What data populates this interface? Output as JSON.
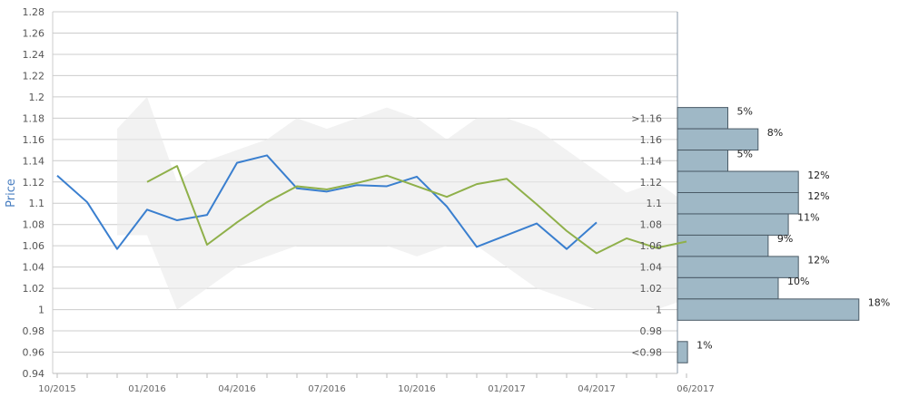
{
  "chart_data": {
    "type": "line",
    "ylabel": "Price",
    "ylim": [
      0.94,
      1.28
    ],
    "y_ticks": [
      "0.94",
      "0.96",
      "0.98",
      "1",
      "1.02",
      "1.04",
      "1.06",
      "1.08",
      "1.1",
      "1.12",
      "1.14",
      "1.16",
      "1.18",
      "1.2",
      "1.22",
      "1.24",
      "1.26",
      "1.28"
    ],
    "x_ticks": [
      "10/2015",
      "01/2016",
      "04/2016",
      "07/2016",
      "10/2016",
      "01/2017",
      "04/2017",
      "06/2017"
    ],
    "grid": true,
    "band": {
      "x": [
        2,
        3,
        4,
        5,
        6,
        7,
        8,
        9,
        10,
        11,
        12,
        13,
        14,
        15,
        16,
        17,
        18,
        19,
        20,
        21,
        22,
        23
      ],
      "upper": [
        1.17,
        1.2,
        1.12,
        1.14,
        1.15,
        1.16,
        1.18,
        1.17,
        1.18,
        1.19,
        1.18,
        1.16,
        1.18,
        1.18,
        1.17,
        1.15,
        1.13,
        1.11,
        1.12,
        1.1,
        1.11,
        1.12
      ],
      "lower": [
        1.07,
        1.07,
        1.0,
        1.02,
        1.04,
        1.05,
        1.06,
        1.06,
        1.06,
        1.06,
        1.05,
        1.06,
        1.06,
        1.04,
        1.02,
        1.01,
        1.0,
        1.0,
        1.0,
        1.01,
        1.0,
        1.01
      ]
    },
    "series": [
      {
        "color": "#3a7fcf",
        "x": [
          0,
          1,
          2,
          3,
          4,
          5,
          6,
          7,
          8,
          9,
          10,
          11,
          12,
          13,
          14,
          15,
          16,
          17,
          18
        ],
        "values": [
          1.126,
          1.101,
          1.057,
          1.094,
          1.084,
          1.089,
          1.138,
          1.145,
          1.114,
          1.111,
          1.117,
          1.116,
          1.125,
          1.097,
          1.059,
          1.07,
          1.081,
          1.057,
          1.082
        ]
      },
      {
        "color": "#8fb04a",
        "x": [
          3,
          4,
          5,
          6,
          7,
          8,
          9,
          10,
          11,
          12,
          13,
          14,
          15,
          16,
          17,
          18,
          19,
          20,
          21
        ],
        "values": [
          1.12,
          1.135,
          1.061,
          1.082,
          1.101,
          1.116,
          1.113,
          1.119,
          1.126,
          1.116,
          1.106,
          1.118,
          1.123,
          1.099,
          1.074,
          1.053,
          1.067,
          1.058,
          1.064
        ]
      }
    ],
    "histogram": {
      "labels": [
        ">1.16",
        "1.16",
        "1.14",
        "1.12",
        "1.1",
        "1.08",
        "1.06",
        "1.04",
        "1.02",
        "1",
        "0.98",
        "<0.98"
      ],
      "values": [
        5,
        8,
        5,
        12,
        12,
        11,
        9,
        12,
        10,
        18,
        null,
        1
      ],
      "value_labels": [
        "5%",
        "8%",
        "5%",
        "12%",
        "12%",
        "11%",
        "9%",
        "12%",
        "10%",
        "18%",
        "",
        "1%"
      ],
      "color": "#9fb8c6"
    }
  }
}
